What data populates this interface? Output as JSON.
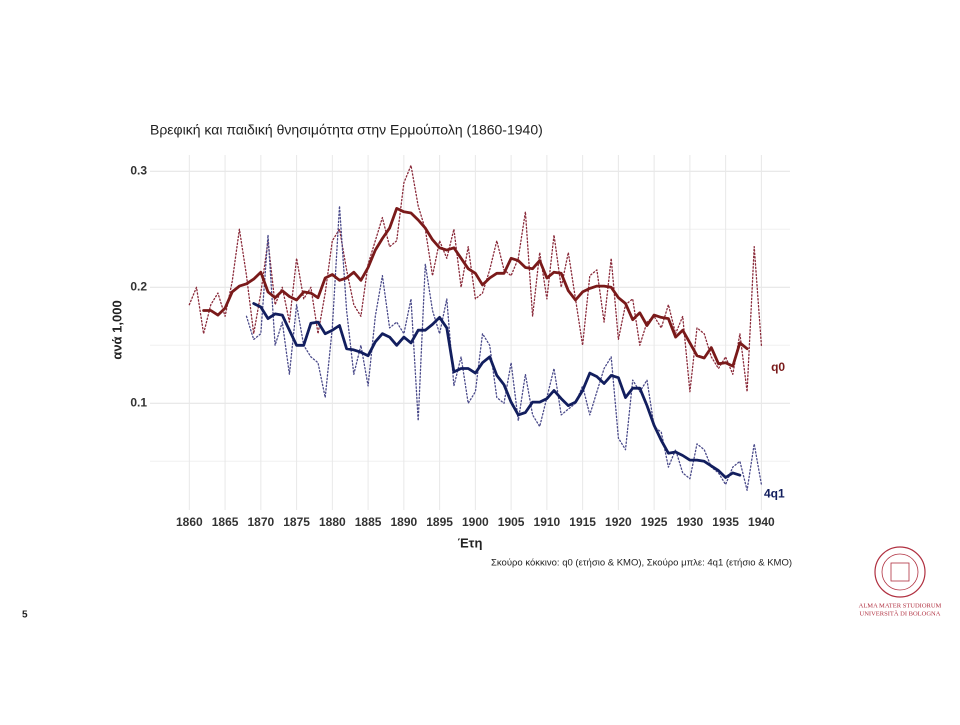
{
  "chart_data": {
    "type": "line",
    "title": "Βρεφική και παιδική θνησιμότητα στην Ερμούπολη (1860-1940)",
    "x_label": "Έτη",
    "y_label": "ανά 1,000",
    "caption": "Σκούρο κόκκινο: q0 (ετήσιο & ΚΜΟ), Σκούρο μπλε: 4q1 (ετήσιο & ΚΜΟ)",
    "xlim": [
      1854.5,
      1944
    ],
    "ylim": [
      0.008,
      0.314
    ],
    "xticks": [
      1860,
      1865,
      1870,
      1875,
      1880,
      1885,
      1890,
      1895,
      1900,
      1905,
      1910,
      1915,
      1920,
      1925,
      1930,
      1935,
      1940
    ],
    "yticks": [
      0.1,
      0.2,
      0.3
    ],
    "yminor": [
      0.05,
      0.15,
      0.25
    ],
    "grid": true,
    "series": [
      {
        "color": "#8a2a3a",
        "style": "dotted",
        "x": [
          1860,
          1861,
          1862,
          1863,
          1864,
          1865,
          1866,
          1867,
          1868,
          1869,
          1870,
          1871,
          1872,
          1873,
          1874,
          1875,
          1876,
          1877,
          1878,
          1879,
          1880,
          1881,
          1882,
          1883,
          1884,
          1885,
          1886,
          1887,
          1888,
          1889,
          1890,
          1891,
          1892,
          1893,
          1894,
          1895,
          1896,
          1897,
          1898,
          1899,
          1900,
          1901,
          1902,
          1903,
          1904,
          1905,
          1906,
          1907,
          1908,
          1909,
          1910,
          1911,
          1912,
          1913,
          1914,
          1915,
          1916,
          1917,
          1918,
          1919,
          1920,
          1921,
          1922,
          1923,
          1924,
          1925,
          1926,
          1927,
          1928,
          1929,
          1930,
          1931,
          1932,
          1933,
          1934,
          1935,
          1936,
          1937,
          1938,
          1939,
          1940
        ],
        "values": [
          0.185,
          0.2,
          0.16,
          0.185,
          0.195,
          0.175,
          0.205,
          0.25,
          0.21,
          0.16,
          0.195,
          0.24,
          0.185,
          0.2,
          0.17,
          0.225,
          0.19,
          0.2,
          0.16,
          0.195,
          0.24,
          0.25,
          0.215,
          0.185,
          0.175,
          0.22,
          0.24,
          0.26,
          0.235,
          0.24,
          0.29,
          0.305,
          0.27,
          0.25,
          0.21,
          0.24,
          0.225,
          0.25,
          0.2,
          0.235,
          0.19,
          0.195,
          0.215,
          0.24,
          0.215,
          0.21,
          0.225,
          0.265,
          0.175,
          0.23,
          0.19,
          0.245,
          0.2,
          0.23,
          0.19,
          0.15,
          0.21,
          0.215,
          0.17,
          0.225,
          0.155,
          0.185,
          0.19,
          0.15,
          0.17,
          0.175,
          0.165,
          0.185,
          0.16,
          0.175,
          0.11,
          0.165,
          0.16,
          0.14,
          0.13,
          0.14,
          0.125,
          0.16,
          0.11,
          0.235,
          0.15
        ]
      },
      {
        "color": "#4a4a8a",
        "style": "dotted",
        "x": [
          1868,
          1869,
          1870,
          1871,
          1872,
          1873,
          1874,
          1875,
          1876,
          1877,
          1878,
          1879,
          1880,
          1881,
          1882,
          1883,
          1884,
          1885,
          1886,
          1887,
          1888,
          1889,
          1890,
          1891,
          1892,
          1893,
          1894,
          1895,
          1896,
          1897,
          1898,
          1899,
          1900,
          1901,
          1902,
          1903,
          1904,
          1905,
          1906,
          1907,
          1908,
          1909,
          1910,
          1911,
          1912,
          1913,
          1914,
          1915,
          1916,
          1917,
          1918,
          1919,
          1920,
          1921,
          1922,
          1923,
          1924,
          1925,
          1926,
          1927,
          1928,
          1929,
          1930,
          1931,
          1932,
          1933,
          1934,
          1935,
          1936,
          1937,
          1938,
          1939,
          1940
        ],
        "values": [
          0.175,
          0.155,
          0.16,
          0.245,
          0.15,
          0.17,
          0.125,
          0.185,
          0.15,
          0.14,
          0.135,
          0.105,
          0.165,
          0.27,
          0.18,
          0.125,
          0.15,
          0.115,
          0.175,
          0.21,
          0.165,
          0.17,
          0.16,
          0.19,
          0.085,
          0.22,
          0.18,
          0.16,
          0.19,
          0.115,
          0.14,
          0.1,
          0.11,
          0.16,
          0.15,
          0.105,
          0.1,
          0.135,
          0.085,
          0.125,
          0.09,
          0.08,
          0.105,
          0.13,
          0.09,
          0.095,
          0.1,
          0.115,
          0.09,
          0.11,
          0.13,
          0.14,
          0.07,
          0.06,
          0.12,
          0.11,
          0.12,
          0.08,
          0.075,
          0.045,
          0.06,
          0.04,
          0.035,
          0.065,
          0.06,
          0.045,
          0.04,
          0.03,
          0.045,
          0.05,
          0.025,
          0.065,
          0.03
        ]
      },
      {
        "name": "q0",
        "color": "#7a1a1a",
        "style": "solid",
        "x": [
          1862,
          1863,
          1864,
          1865,
          1866,
          1867,
          1868,
          1869,
          1870,
          1871,
          1872,
          1873,
          1874,
          1875,
          1876,
          1877,
          1878,
          1879,
          1880,
          1881,
          1882,
          1883,
          1884,
          1885,
          1886,
          1887,
          1888,
          1889,
          1890,
          1891,
          1892,
          1893,
          1894,
          1895,
          1896,
          1897,
          1898,
          1899,
          1900,
          1901,
          1902,
          1903,
          1904,
          1905,
          1906,
          1907,
          1908,
          1909,
          1910,
          1911,
          1912,
          1913,
          1914,
          1915,
          1916,
          1917,
          1918,
          1919,
          1920,
          1921,
          1922,
          1923,
          1924,
          1925,
          1926,
          1927,
          1928,
          1929,
          1930,
          1931,
          1932,
          1933,
          1934,
          1935,
          1936,
          1937,
          1938
        ],
        "values": [
          0.18,
          0.18,
          0.176,
          0.182,
          0.196,
          0.201,
          0.203,
          0.207,
          0.213,
          0.196,
          0.191,
          0.197,
          0.192,
          0.189,
          0.196,
          0.195,
          0.191,
          0.208,
          0.211,
          0.206,
          0.208,
          0.213,
          0.206,
          0.217,
          0.232,
          0.242,
          0.251,
          0.268,
          0.265,
          0.264,
          0.258,
          0.251,
          0.241,
          0.234,
          0.232,
          0.234,
          0.225,
          0.216,
          0.212,
          0.202,
          0.208,
          0.212,
          0.212,
          0.225,
          0.223,
          0.217,
          0.216,
          0.223,
          0.208,
          0.213,
          0.212,
          0.197,
          0.189,
          0.196,
          0.199,
          0.201,
          0.201,
          0.2,
          0.191,
          0.186,
          0.172,
          0.178,
          0.167,
          0.176,
          0.174,
          0.173,
          0.157,
          0.163,
          0.152,
          0.141,
          0.139,
          0.148,
          0.134,
          0.135,
          0.132,
          0.152,
          0.147
        ]
      },
      {
        "name": "4q1",
        "color": "#121e5e",
        "style": "solid",
        "x": [
          1869,
          1870,
          1871,
          1872,
          1873,
          1874,
          1875,
          1876,
          1877,
          1878,
          1879,
          1880,
          1881,
          1882,
          1883,
          1884,
          1885,
          1886,
          1887,
          1888,
          1889,
          1890,
          1891,
          1892,
          1893,
          1894,
          1895,
          1896,
          1897,
          1898,
          1899,
          1900,
          1901,
          1902,
          1903,
          1904,
          1905,
          1906,
          1907,
          1908,
          1909,
          1910,
          1911,
          1912,
          1913,
          1914,
          1915,
          1916,
          1917,
          1918,
          1919,
          1920,
          1921,
          1922,
          1923,
          1924,
          1925,
          1926,
          1927,
          1928,
          1929,
          1930,
          1931,
          1932,
          1933,
          1934,
          1935,
          1936,
          1937
        ],
        "values": [
          0.186,
          0.183,
          0.173,
          0.177,
          0.176,
          0.163,
          0.15,
          0.15,
          0.169,
          0.17,
          0.16,
          0.163,
          0.167,
          0.147,
          0.146,
          0.144,
          0.141,
          0.153,
          0.16,
          0.157,
          0.15,
          0.157,
          0.152,
          0.163,
          0.163,
          0.168,
          0.174,
          0.165,
          0.127,
          0.13,
          0.13,
          0.126,
          0.135,
          0.14,
          0.124,
          0.116,
          0.101,
          0.09,
          0.092,
          0.101,
          0.101,
          0.104,
          0.111,
          0.104,
          0.098,
          0.101,
          0.111,
          0.126,
          0.123,
          0.117,
          0.124,
          0.122,
          0.105,
          0.113,
          0.113,
          0.098,
          0.081,
          0.068,
          0.057,
          0.058,
          0.055,
          0.051,
          0.051,
          0.05,
          0.046,
          0.042,
          0.036,
          0.04,
          0.038
        ]
      }
    ]
  },
  "slide": {
    "number": "5",
    "logo_line1": "ALMA MATER STUDIORUM",
    "logo_line2": "UNIVERSITÀ DI BOLOGNA"
  }
}
